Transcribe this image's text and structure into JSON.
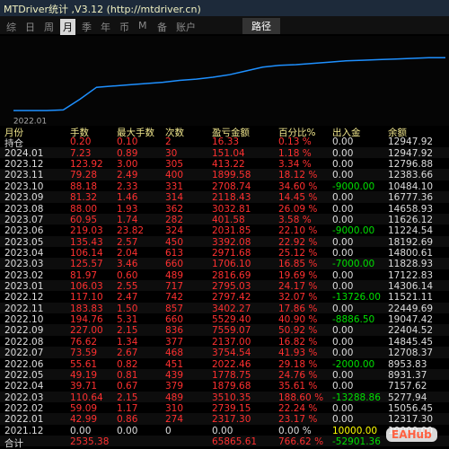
{
  "window": {
    "title": "MTDriver统计 ,V3.12 (http://mtdriver.cn)",
    "tabs": [
      "综",
      "日",
      "周",
      "月",
      "季",
      "年",
      "币",
      "M",
      "备",
      "账户"
    ],
    "active_tab": "月",
    "path_button": "路径"
  },
  "chart_data": {
    "type": "line",
    "categories": [
      null,
      "2022.01",
      null,
      null,
      null,
      null,
      null,
      null,
      null,
      null,
      null,
      null,
      null,
      null,
      null,
      null,
      null,
      null,
      null,
      null,
      null,
      null,
      null,
      null,
      null,
      null,
      null
    ],
    "values": [
      7,
      7,
      7,
      8,
      25,
      44,
      46,
      48,
      50,
      52,
      55,
      57,
      60,
      64,
      70,
      76,
      79,
      80,
      82,
      84,
      86,
      87,
      88,
      89,
      90,
      91,
      91
    ],
    "ylim": [
      0,
      100
    ],
    "color": "#1e90ff"
  },
  "table": {
    "header": [
      "月份",
      "手数",
      "最大手数",
      "次数",
      "盈亏金额",
      "百分比%",
      "出入金",
      "余额"
    ],
    "rows": [
      [
        "持仓",
        "0.20",
        "0.10",
        "2",
        "16.33",
        "0.13 %",
        "0.00",
        "12947.92"
      ],
      [
        "2024.01",
        "7.23",
        "0.89",
        "30",
        "151.04",
        "1.18 %",
        "0.00",
        "12947.92"
      ],
      [
        "2023.12",
        "123.92",
        "3.00",
        "305",
        "413.22",
        "3.34 %",
        "0.00",
        "12796.88"
      ],
      [
        "2023.11",
        "79.28",
        "2.49",
        "400",
        "1899.58",
        "18.12 %",
        "0.00",
        "12383.66"
      ],
      [
        "2023.10",
        "88.18",
        "2.33",
        "331",
        "2708.74",
        "34.60 %",
        "-9000.00",
        "10484.10"
      ],
      [
        "2023.09",
        "81.32",
        "1.46",
        "314",
        "2118.43",
        "14.45 %",
        "0.00",
        "16777.36"
      ],
      [
        "2023.08",
        "88.00",
        "1.93",
        "362",
        "3032.81",
        "26.09 %",
        "0.00",
        "14658.93"
      ],
      [
        "2023.07",
        "60.95",
        "1.74",
        "282",
        "401.58",
        "3.58 %",
        "0.00",
        "11626.12"
      ],
      [
        "2023.06",
        "219.03",
        "23.82",
        "324",
        "2031.85",
        "22.10 %",
        "-9000.00",
        "11224.54"
      ],
      [
        "2023.05",
        "135.43",
        "2.57",
        "450",
        "3392.08",
        "22.92 %",
        "0.00",
        "18192.69"
      ],
      [
        "2023.04",
        "106.14",
        "2.04",
        "613",
        "2971.68",
        "25.12 %",
        "0.00",
        "14800.61"
      ],
      [
        "2023.03",
        "125.57",
        "3.46",
        "660",
        "1706.10",
        "16.85 %",
        "-7000.00",
        "11828.93"
      ],
      [
        "2023.02",
        "81.97",
        "0.60",
        "489",
        "2816.69",
        "19.69 %",
        "0.00",
        "17122.83"
      ],
      [
        "2023.01",
        "106.03",
        "2.55",
        "717",
        "2795.03",
        "24.17 %",
        "0.00",
        "14306.14"
      ],
      [
        "2022.12",
        "117.10",
        "2.47",
        "742",
        "2797.42",
        "32.07 %",
        "-13726.00",
        "11521.11"
      ],
      [
        "2022.11",
        "183.83",
        "1.50",
        "857",
        "3402.27",
        "17.86 %",
        "0.00",
        "22449.69"
      ],
      [
        "2022.10",
        "194.76",
        "5.31",
        "660",
        "5529.40",
        "40.90 %",
        "-8886.50",
        "19047.42"
      ],
      [
        "2022.09",
        "227.00",
        "2.15",
        "836",
        "7559.07",
        "50.92 %",
        "0.00",
        "22404.52"
      ],
      [
        "2022.08",
        "76.62",
        "1.34",
        "377",
        "2137.00",
        "16.82 %",
        "0.00",
        "14845.45"
      ],
      [
        "2022.07",
        "73.59",
        "2.67",
        "468",
        "3754.54",
        "41.93 %",
        "0.00",
        "12708.37"
      ],
      [
        "2022.06",
        "55.61",
        "0.82",
        "451",
        "2022.46",
        "29.18 %",
        "-2000.00",
        "8953.83"
      ],
      [
        "2022.05",
        "49.19",
        "0.81",
        "439",
        "1778.75",
        "24.76 %",
        "0.00",
        "8931.37"
      ],
      [
        "2022.04",
        "39.71",
        "0.67",
        "379",
        "1879.68",
        "35.61 %",
        "0.00",
        "7157.62"
      ],
      [
        "2022.03",
        "110.64",
        "2.15",
        "489",
        "3510.35",
        "188.60 %",
        "-13288.86",
        "5277.94"
      ],
      [
        "2022.02",
        "59.09",
        "1.17",
        "310",
        "2739.15",
        "22.24 %",
        "0.00",
        "15056.45"
      ],
      [
        "2022.01",
        "42.99",
        "0.86",
        "274",
        "2317.30",
        "23.17 %",
        "0.00",
        "12317.30"
      ],
      [
        "2021.12",
        "0.00",
        "0.00",
        "0",
        "0.00",
        "0.00 %",
        "10000.00",
        "10000.00"
      ],
      [
        "合计",
        "2535.38",
        null,
        null,
        "65865.61",
        "766.62 %",
        "-52901.36",
        null
      ]
    ]
  },
  "watermark": "EAHub"
}
